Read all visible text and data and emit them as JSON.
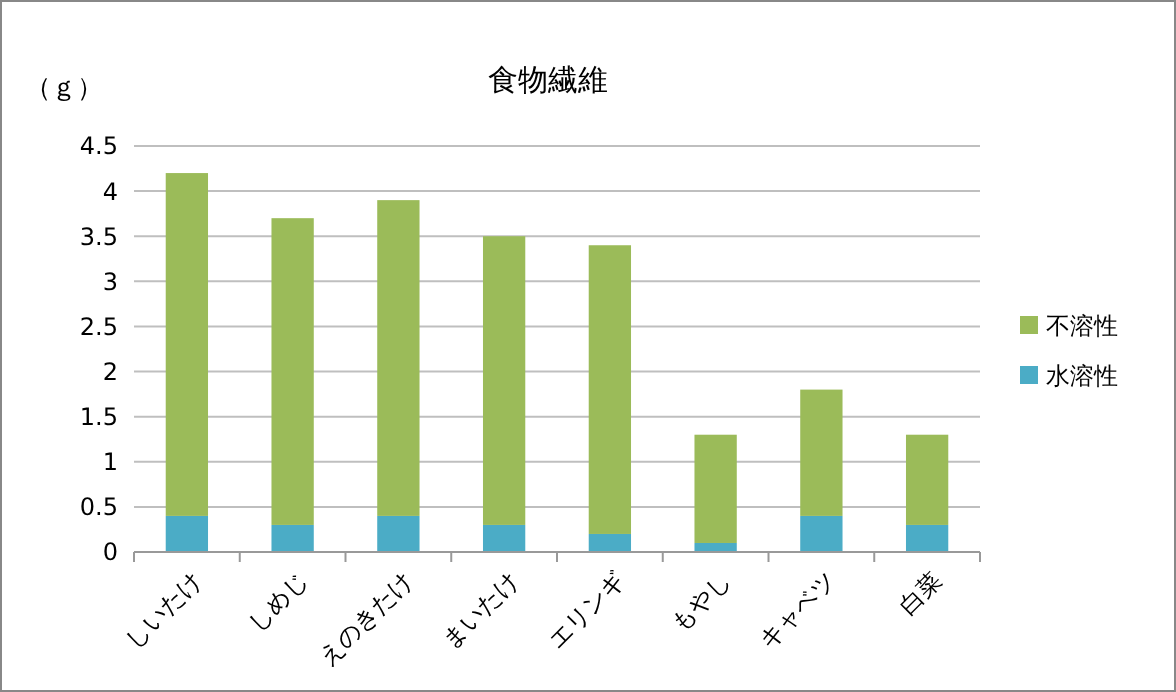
{
  "chart_data": {
    "type": "bar",
    "title": "食物繊維",
    "ylabel": "（ｇ）",
    "stacked": true,
    "categories": [
      "しいたけ",
      "しめじ",
      "えのきたけ",
      "まいたけ",
      "エリンギ",
      "もやし",
      "キャベツ",
      "白菜"
    ],
    "series": [
      {
        "name": "水溶性",
        "color": "#4bacc6",
        "values": [
          0.4,
          0.3,
          0.4,
          0.3,
          0.2,
          0.1,
          0.4,
          0.3
        ]
      },
      {
        "name": "不溶性",
        "color": "#9bbb59",
        "values": [
          3.8,
          3.4,
          3.5,
          3.2,
          3.2,
          1.2,
          1.4,
          1.0
        ]
      }
    ],
    "ylim": [
      0,
      4.5
    ],
    "yticks": [
      0,
      0.5,
      1,
      1.5,
      2,
      2.5,
      3,
      3.5,
      4,
      4.5
    ],
    "grid": "y",
    "legend": "right"
  }
}
